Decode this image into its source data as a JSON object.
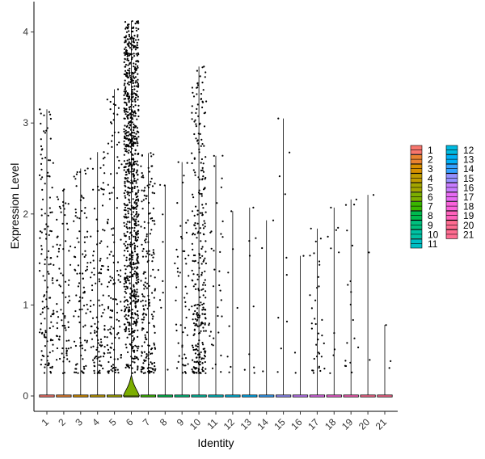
{
  "chart_data": {
    "type": "violin",
    "xlabel": "Identity",
    "ylabel": "Expression Level",
    "ylim": [
      -0.2,
      4.3
    ],
    "yticks": [
      0,
      1,
      2,
      3,
      4
    ],
    "grid": false,
    "legend_position": "right",
    "legend_columns": 2,
    "categories": [
      "1",
      "2",
      "3",
      "4",
      "5",
      "6",
      "7",
      "8",
      "9",
      "10",
      "11",
      "12",
      "13",
      "14",
      "15",
      "16",
      "17",
      "18",
      "19",
      "20",
      "21"
    ],
    "colors": [
      "#F8766D",
      "#EA8331",
      "#D89000",
      "#C09B00",
      "#A3A500",
      "#7CAE00",
      "#39B600",
      "#00BB4E",
      "#00BF7D",
      "#00C1A3",
      "#00BFC4",
      "#00BAE0",
      "#00B0F6",
      "#35A2FF",
      "#9590FF",
      "#C77CFF",
      "#E76BF3",
      "#FA62DB",
      "#FF62BC",
      "#FF6C91",
      "#FF6C91"
    ],
    "series": [
      {
        "category": "1",
        "max": 3.15,
        "median": 0,
        "expressing_cells": 140
      },
      {
        "category": "2",
        "max": 2.27,
        "median": 0,
        "expressing_cells": 85
      },
      {
        "category": "3",
        "max": 2.5,
        "median": 0,
        "expressing_cells": 100
      },
      {
        "category": "4",
        "max": 2.68,
        "median": 0,
        "expressing_cells": 115
      },
      {
        "category": "5",
        "max": 3.37,
        "median": 0,
        "expressing_cells": 130
      },
      {
        "category": "6",
        "max": 4.12,
        "median": 0,
        "expressing_cells": 900
      },
      {
        "category": "7",
        "max": 2.67,
        "median": 0,
        "expressing_cells": 190
      },
      {
        "category": "8",
        "max": 2.32,
        "median": 0,
        "expressing_cells": 10
      },
      {
        "category": "9",
        "max": 2.57,
        "median": 0,
        "expressing_cells": 55
      },
      {
        "category": "10",
        "max": 3.62,
        "median": 0,
        "expressing_cells": 300
      },
      {
        "category": "11",
        "max": 2.64,
        "median": 0,
        "expressing_cells": 35
      },
      {
        "category": "12",
        "max": 2.03,
        "median": 0,
        "expressing_cells": 8
      },
      {
        "category": "13",
        "max": 2.07,
        "median": 0,
        "expressing_cells": 9
      },
      {
        "category": "14",
        "max": 1.93,
        "median": 0,
        "expressing_cells": 3
      },
      {
        "category": "15",
        "max": 3.05,
        "median": 0,
        "expressing_cells": 10
      },
      {
        "category": "16",
        "max": 1.54,
        "median": 0,
        "expressing_cells": 3
      },
      {
        "category": "17",
        "max": 1.84,
        "median": 0,
        "expressing_cells": 35
      },
      {
        "category": "18",
        "max": 2.07,
        "median": 0,
        "expressing_cells": 10
      },
      {
        "category": "19",
        "max": 2.16,
        "median": 0,
        "expressing_cells": 18
      },
      {
        "category": "20",
        "max": 2.21,
        "median": 0,
        "expressing_cells": 3
      },
      {
        "category": "21",
        "max": 0.78,
        "median": 0,
        "expressing_cells": 3
      }
    ]
  }
}
